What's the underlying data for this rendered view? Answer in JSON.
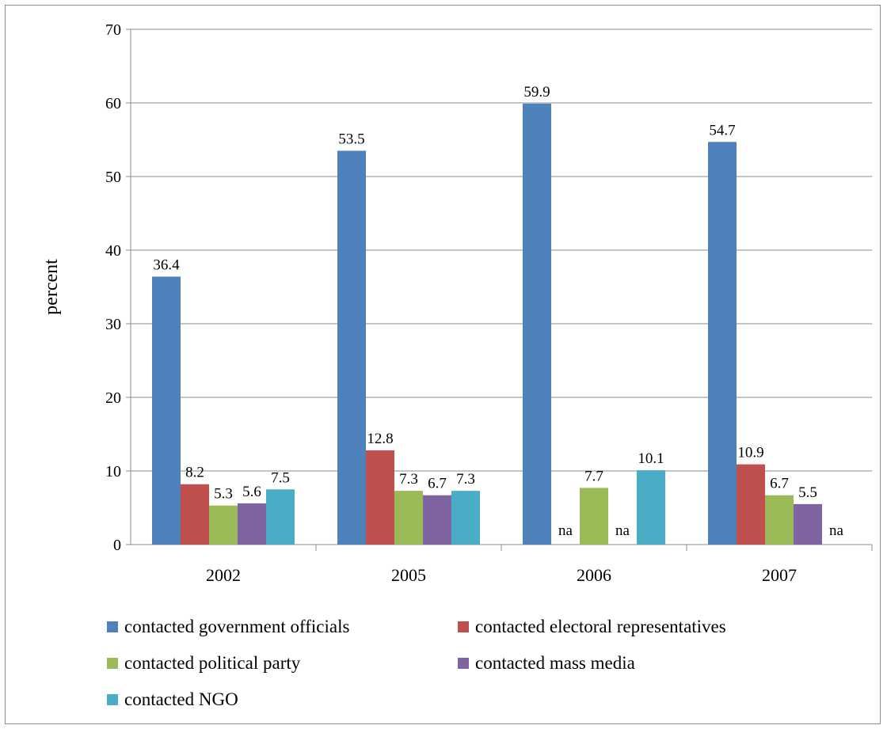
{
  "chart_data": {
    "type": "bar",
    "title": "",
    "xlabel": "",
    "ylabel": "percent",
    "ylim": [
      0,
      70
    ],
    "yticks": [
      0,
      10,
      20,
      30,
      40,
      50,
      60,
      70
    ],
    "grid": true,
    "legend_position": "bottom",
    "categories": [
      "2002",
      "2005",
      "2006",
      "2007"
    ],
    "series": [
      {
        "name": "contacted government officials",
        "color": "#4F81BD",
        "values": [
          36.4,
          53.5,
          59.9,
          54.7
        ],
        "labels": [
          "36.4",
          "53.5",
          "59.9",
          "54.7"
        ]
      },
      {
        "name": "contacted electoral representatives",
        "color": "#C0504D",
        "values": [
          8.2,
          12.8,
          null,
          10.9
        ],
        "labels": [
          "8.2",
          "12.8",
          "na",
          "10.9"
        ]
      },
      {
        "name": "contacted political party",
        "color": "#9BBB59",
        "values": [
          5.3,
          7.3,
          7.7,
          6.7
        ],
        "labels": [
          "5.3",
          "7.3",
          "7.7",
          "6.7"
        ]
      },
      {
        "name": "contacted mass media",
        "color": "#8064A2",
        "values": [
          5.6,
          6.7,
          null,
          5.5
        ],
        "labels": [
          "5.6",
          "6.7",
          "na",
          "5.5"
        ]
      },
      {
        "name": "contacted NGO",
        "color": "#4BACC6",
        "values": [
          7.5,
          7.3,
          10.1,
          null
        ],
        "labels": [
          "7.5",
          "7.3",
          "10.1",
          "na"
        ]
      }
    ]
  }
}
